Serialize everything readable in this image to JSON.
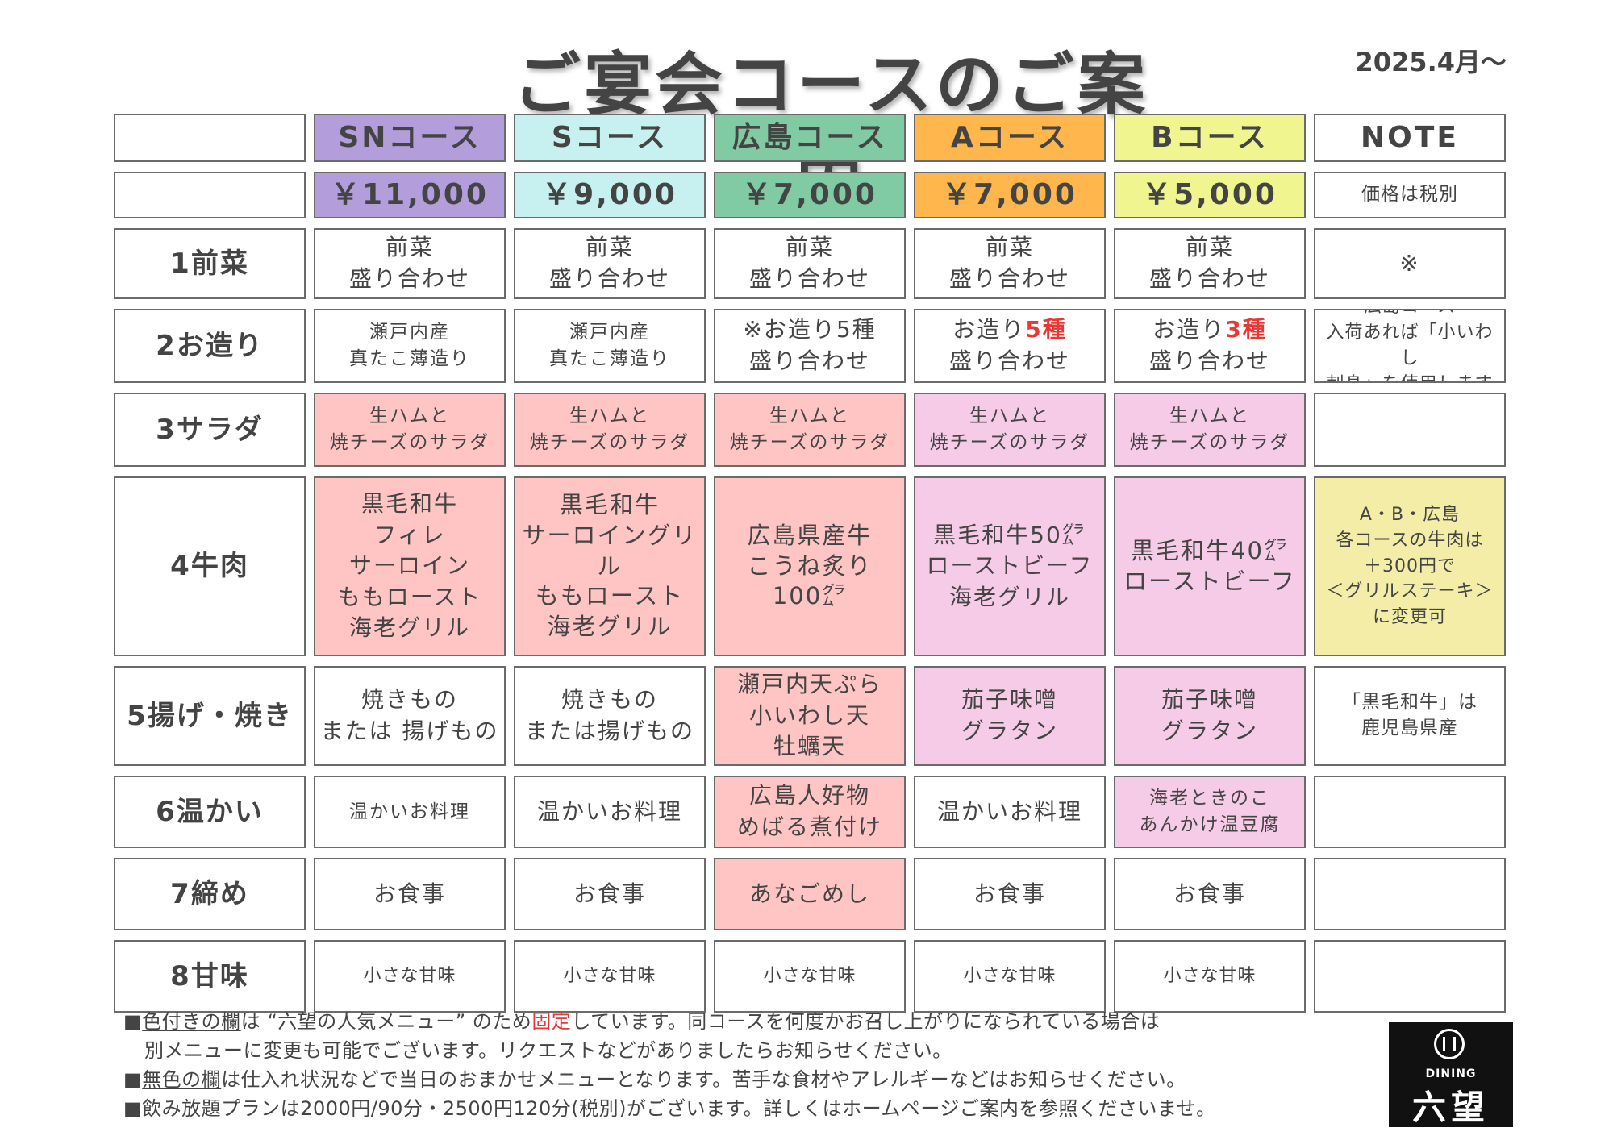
{
  "title": "ご宴会コースのご案内",
  "date": "2025.4月〜",
  "colors": {
    "sn": "#b39ddb",
    "s": "#c7f1f1",
    "hiroshima": "#80cba4",
    "a": "#ffb74d",
    "b": "#f0f590",
    "fixed_pink": "#ffc4c4",
    "fixed_lilac": "#f6cbe8",
    "note_khaki": "#f3eda8",
    "highlight_red": "#e53935"
  },
  "headers": [
    "SNコース",
    "Sコース",
    "広島コース",
    "Aコース",
    "Bコース",
    "NOTE"
  ],
  "prices": [
    "￥11,000",
    "￥9,000",
    "￥7,000",
    "￥7,000",
    "￥5,000"
  ],
  "price_note": "価格は税別",
  "rows": [
    {
      "label": "1前菜",
      "cells": [
        "前菜\n盛り合わせ",
        "前菜\n盛り合わせ",
        "前菜\n盛り合わせ",
        "前菜\n盛り合わせ",
        "前菜\n盛り合わせ"
      ],
      "note": "※"
    },
    {
      "label": "2お造り",
      "cells": [
        "瀬戸内産\n真たこ薄造り",
        "瀬戸内産\n真たこ薄造り",
        "※お造り5種\n盛り合わせ"
      ],
      "a_pre": "お造り",
      "a_red": "5種",
      "a_post": "盛り合わせ",
      "b_pre": "お造り",
      "b_red": "3種",
      "b_post": "盛り合わせ",
      "note": "広島コース\n入荷あれば「小いわし\n刺身」を使用します"
    },
    {
      "label": "3サラダ",
      "cells": [
        "生ハムと\n焼チーズのサラダ",
        "生ハムと\n焼チーズのサラダ",
        "生ハムと\n焼チーズのサラダ",
        "生ハムと\n焼チーズのサラダ",
        "生ハムと\n焼チーズのサラダ"
      ],
      "note": ""
    },
    {
      "label": "4牛肉",
      "cells": [
        "黒毛和牛\nフィレ\nサーロイン\nももロースト\n海老グリル",
        "黒毛和牛\nサーロイングリル\nももロースト\n海老グリル",
        "広島県産牛\nこうね炙り\n100㌘",
        "黒毛和牛50㌘\nローストビーフ\n海老グリル",
        "黒毛和牛40㌘\nローストビーフ"
      ],
      "note": "A・B・広島\n各コースの牛肉は\n＋300円で\n＜グリルステーキ＞\nに変更可"
    },
    {
      "label": "5揚げ・焼き",
      "cells": [
        "焼きもの\nまたは 揚げもの",
        "焼きもの\nまたは揚げもの",
        "瀬戸内天ぷら\n小いわし天\n牡蠣天",
        "茄子味噌\nグラタン",
        "茄子味噌\nグラタン"
      ],
      "note": "「黒毛和牛」は\n鹿児島県産"
    },
    {
      "label": "6温かい",
      "cells": [
        "温かいお料理",
        "温かいお料理",
        "広島人好物\nめばる煮付け",
        "温かいお料理",
        "海老ときのこ\nあんかけ温豆腐"
      ],
      "note": ""
    },
    {
      "label": "7締め",
      "cells": [
        "お食事",
        "お食事",
        "あなごめし",
        "お食事",
        "お食事"
      ],
      "note": ""
    },
    {
      "label": "8甘味",
      "cells": [
        "小さな甘味",
        "小さな甘味",
        "小さな甘味",
        "小さな甘味",
        "小さな甘味"
      ],
      "note": ""
    }
  ],
  "footer": {
    "line1_a": "■",
    "line1_u": "色付きの欄",
    "line1_b": "は “六望の人気メニュー” のため",
    "line1_red": "固定",
    "line1_c": "しています。同コースを何度かお召し上がりになられている場合は",
    "line2": "別メニューに変更も可能でございます。リクエストなどがありましたらお知らせください。",
    "line3_a": "■",
    "line3_u": "無色の欄",
    "line3_b": "は仕入れ状況などで当日のおまかせメニューとなります。苦手な食材やアレルギーなどはお知らせください。",
    "line4": "■飲み放題プランは2000円/90分・2500円120分(税別)がございます。詳しくはホームページご案内を参照くださいませ。"
  },
  "logo": {
    "small": "DINING",
    "name": "六望"
  }
}
